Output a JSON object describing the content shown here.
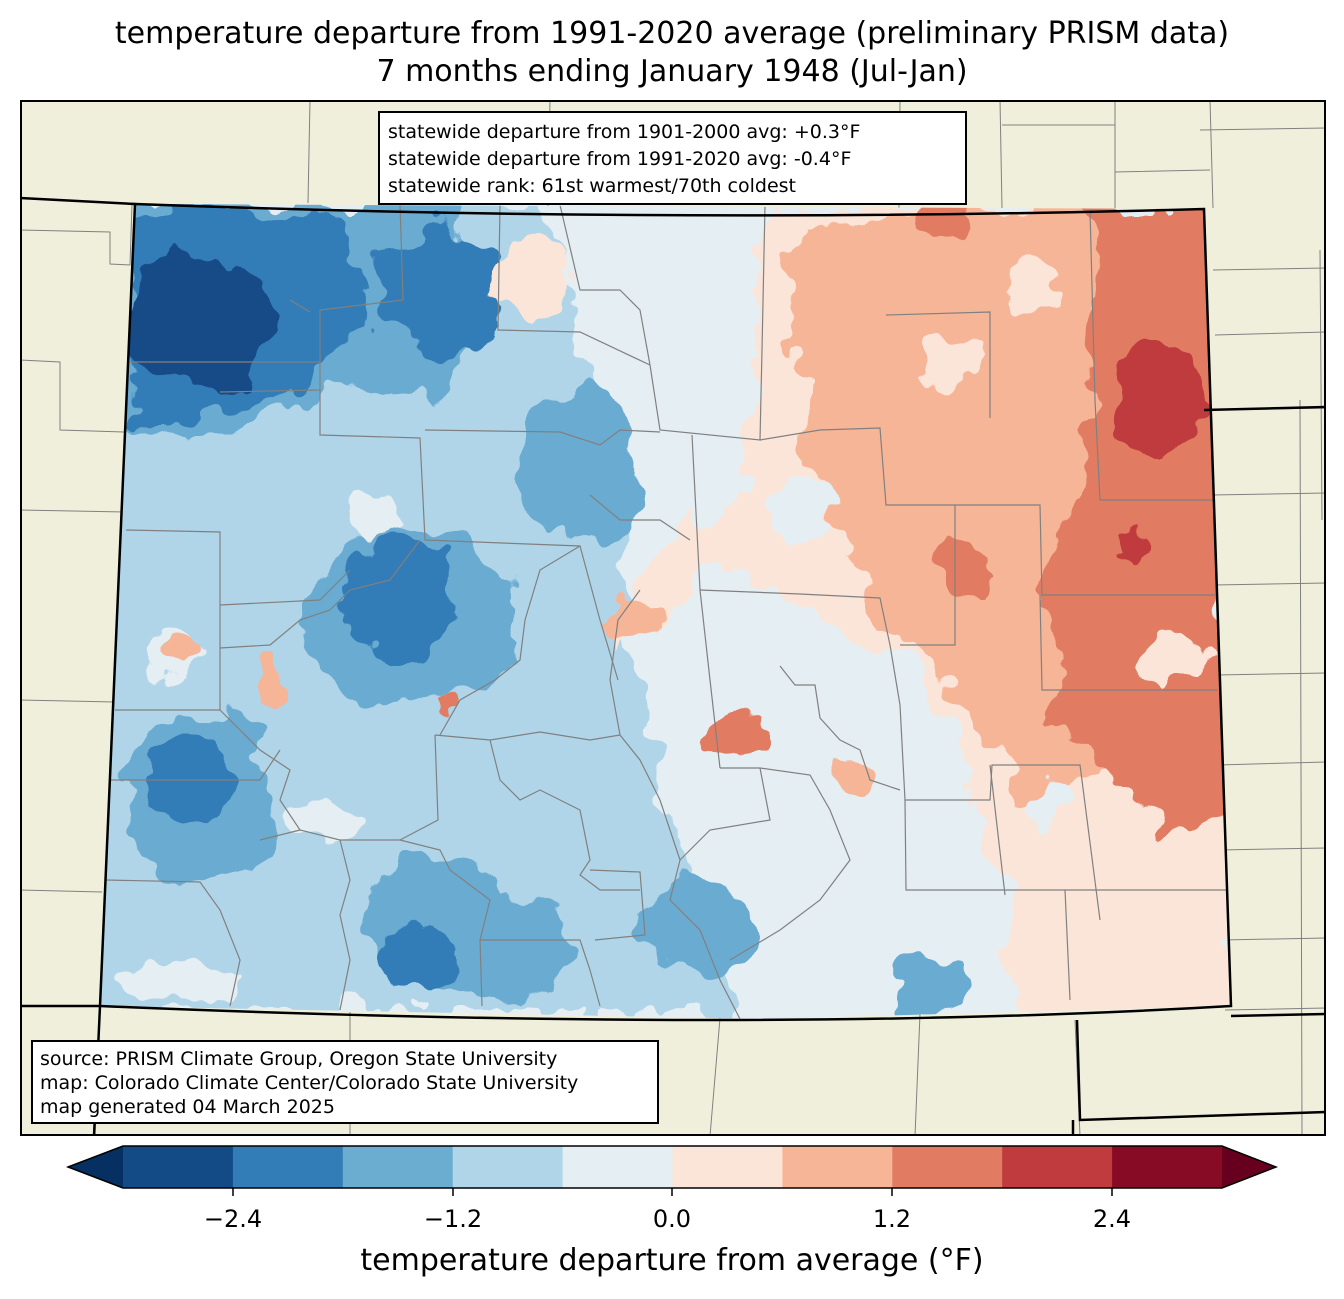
{
  "title": {
    "line1": "temperature departure from 1991-2020 average (preliminary PRISM data)",
    "line2": "7 months ending January 1948 (Jul-Jan)"
  },
  "stats": {
    "line1": "statewide departure from 1901-2000 avg: +0.3°F",
    "line2": "statewide departure from 1991-2020 avg: -0.4°F",
    "line3": "statewide rank: 61st warmest/70th coldest"
  },
  "source": {
    "line1": "source: PRISM Climate Group, Oregon State University",
    "line2": "map: Colorado Climate Center/Colorado State University",
    "line3": "map generated 04 March 2025"
  },
  "colorbar": {
    "label": "temperature departure from average (°F)",
    "ticks": [
      "−2.4",
      "−1.2",
      "0.0",
      "1.2",
      "2.4"
    ],
    "under_color": "#053061",
    "over_color": "#67001f",
    "colors": [
      "#134b87",
      "#327cb7",
      "#6bacd1",
      "#b1d5e8",
      "#e5eef3",
      "#fbe5d8",
      "#f7b597",
      "#e17b62",
      "#c03b3e",
      "#870b24"
    ]
  },
  "colors": {
    "land": "#f0efdc",
    "county_lines": "#808080",
    "state_lines": "#000000"
  }
}
